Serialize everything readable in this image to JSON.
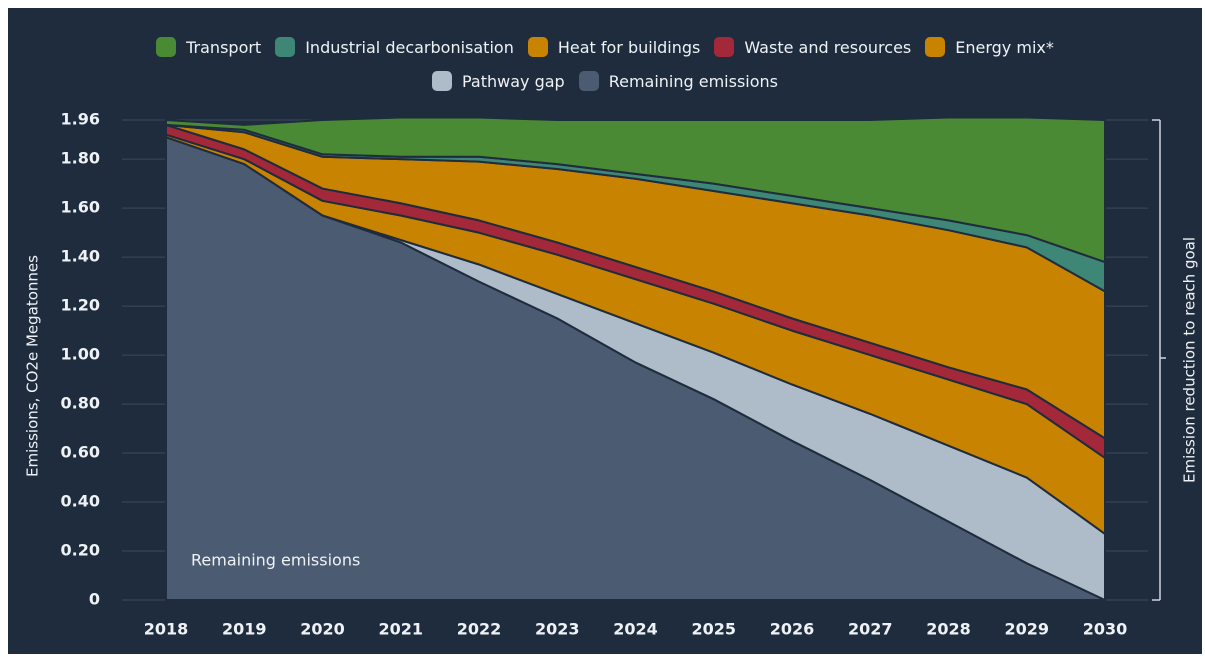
{
  "chart_data": {
    "type": "stacked-area",
    "ylabel": "Emissions, CO2e Megatonnes",
    "y2label": "Emission reduction to reach goal",
    "annotation": "Remaining emissions",
    "categories": [
      "2018",
      "2019",
      "2020",
      "2021",
      "2022",
      "2023",
      "2024",
      "2025",
      "2026",
      "2027",
      "2028",
      "2029",
      "2030"
    ],
    "series": [
      {
        "name": "Transport",
        "color": "#4a8a35",
        "values": [
          0.02,
          0.02,
          0.14,
          0.16,
          0.16,
          0.18,
          0.22,
          0.26,
          0.31,
          0.36,
          0.42,
          0.48,
          0.58
        ]
      },
      {
        "name": "Industrial decarbonisation",
        "color": "#3e8676",
        "values": [
          0,
          0.01,
          0.01,
          0.01,
          0.02,
          0.02,
          0.02,
          0.03,
          0.03,
          0.03,
          0.04,
          0.05,
          0.12
        ]
      },
      {
        "name": "Heat for buildings",
        "color": "#c88400",
        "values": [
          0,
          0.07,
          0.13,
          0.18,
          0.24,
          0.3,
          0.36,
          0.41,
          0.47,
          0.52,
          0.56,
          0.58,
          0.6
        ]
      },
      {
        "name": "Waste and resources",
        "color": "#a3283a",
        "values": [
          0.04,
          0.04,
          0.05,
          0.05,
          0.05,
          0.05,
          0.05,
          0.05,
          0.05,
          0.05,
          0.05,
          0.06,
          0.08
        ]
      },
      {
        "name": "Energy mix*",
        "color": "#c88400",
        "values": [
          0.01,
          0.02,
          0.06,
          0.1,
          0.13,
          0.16,
          0.18,
          0.2,
          0.22,
          0.24,
          0.27,
          0.3,
          0.31
        ]
      },
      {
        "name": "Pathway gap",
        "color": "#aebbc8",
        "values": [
          0,
          0,
          0,
          0.01,
          0.07,
          0.1,
          0.16,
          0.19,
          0.23,
          0.27,
          0.31,
          0.35,
          0.27
        ]
      },
      {
        "name": "Remaining emissions",
        "color": "#4b5b71",
        "values": [
          1.89,
          1.78,
          1.57,
          1.46,
          1.3,
          1.15,
          0.97,
          0.82,
          0.65,
          0.49,
          0.32,
          0.15,
          0
        ]
      }
    ],
    "ylim": [
      0,
      1.96
    ],
    "yticks": [
      0,
      {
        "value": 0.2,
        "label": "0.20"
      },
      {
        "value": 0.4,
        "label": "0.40"
      },
      {
        "value": 0.6,
        "label": "0.60"
      },
      {
        "value": 0.8,
        "label": "0.80"
      },
      {
        "value": 1.0,
        "label": "1.00"
      },
      {
        "value": 1.2,
        "label": "1.20"
      },
      {
        "value": 1.4,
        "label": "1.40"
      },
      {
        "value": 1.6,
        "label": "1.60"
      },
      {
        "value": 1.8,
        "label": "1.80"
      },
      1.96
    ],
    "grid": true
  }
}
